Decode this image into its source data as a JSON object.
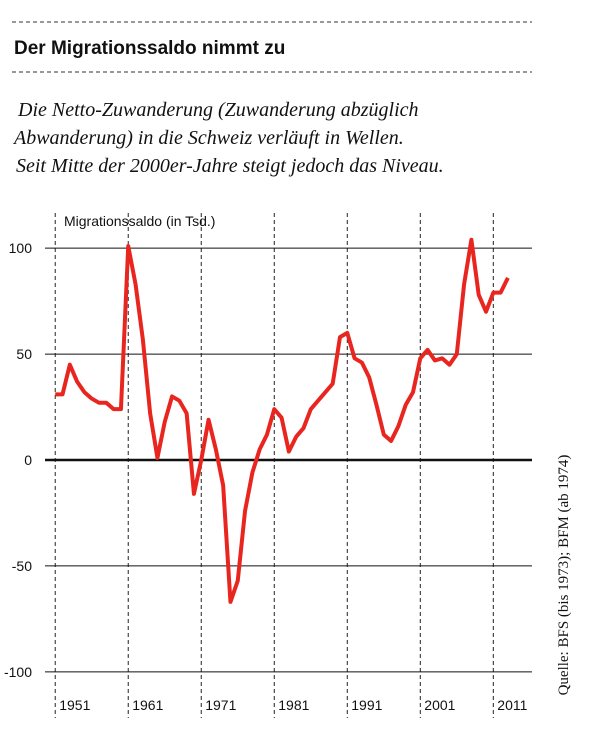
{
  "chart_data": {
    "type": "line",
    "title": "Der Migrationssaldo nimmt zu",
    "subtitle": [
      "Die Netto-Zuwanderung (Zuwanderung abzüglich",
      "Abwanderung) in die Schweiz verläuft in Wellen.",
      "Seit Mitte der 2000er-Jahre steigt jedoch das Niveau."
    ],
    "y_label": "Migrationssaldo (in Tsd.)",
    "source": "Quelle: BFS (bis 1973); BFM (ab 1974)",
    "x": [
      1951,
      1952,
      1953,
      1954,
      1955,
      1956,
      1957,
      1958,
      1959,
      1960,
      1961,
      1962,
      1963,
      1964,
      1965,
      1966,
      1967,
      1968,
      1969,
      1970,
      1971,
      1972,
      1973,
      1974,
      1975,
      1976,
      1977,
      1978,
      1979,
      1980,
      1981,
      1982,
      1983,
      1984,
      1985,
      1986,
      1987,
      1988,
      1989,
      1990,
      1991,
      1992,
      1993,
      1994,
      1995,
      1996,
      1997,
      1998,
      1999,
      2000,
      2001,
      2002,
      2003,
      2004,
      2005,
      2006,
      2007,
      2008,
      2009,
      2010,
      2011,
      2012,
      2013
    ],
    "series": [
      {
        "name": "Migrationssaldo",
        "color": "#e8261f",
        "values": [
          31,
          31,
          45,
          37,
          32,
          29,
          27,
          27,
          24,
          24,
          101,
          83,
          57,
          22,
          1,
          18,
          30,
          28,
          22,
          -16,
          0,
          19,
          5,
          -12,
          -67,
          -57,
          -24,
          -6,
          5,
          12,
          24,
          20,
          4,
          11,
          15,
          24,
          28,
          32,
          36,
          58,
          60,
          48,
          46,
          39,
          26,
          12,
          9,
          16,
          26,
          32,
          48,
          52,
          47,
          48,
          45,
          50,
          83,
          104,
          78,
          70,
          79,
          79,
          86
        ]
      }
    ],
    "xlim": [
      1949.6,
      2016.3
    ],
    "xticks": [
      1951,
      1961,
      1971,
      1981,
      1991,
      2001,
      2011
    ],
    "ylim": [
      -110,
      110
    ],
    "yticks": [
      -100,
      -50,
      0,
      50,
      100
    ],
    "grid": true
  }
}
